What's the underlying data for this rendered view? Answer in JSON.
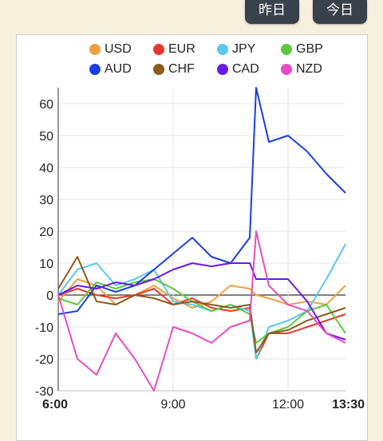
{
  "buttons": {
    "yesterday": "昨日",
    "today": "今日"
  },
  "legend": [
    {
      "name": "USD",
      "color": "#f0a13c"
    },
    {
      "name": "EUR",
      "color": "#e8392c"
    },
    {
      "name": "JPY",
      "color": "#5ac8f0"
    },
    {
      "name": "GBP",
      "color": "#5cc93c"
    },
    {
      "name": "AUD",
      "color": "#1a3ee0"
    },
    {
      "name": "CHF",
      "color": "#8b5a1c"
    },
    {
      "name": "CAD",
      "color": "#6a1ae8"
    },
    {
      "name": "NZD",
      "color": "#e84cc0"
    }
  ],
  "chart_data": {
    "type": "line",
    "ylim": [
      -30,
      65
    ],
    "y_ticks": [
      "60",
      "50",
      "40",
      "30",
      "20",
      "10",
      "0",
      "-10",
      "-20",
      "-30"
    ],
    "x_ticks": [
      {
        "label": "6:00",
        "bold": true
      },
      {
        "label": "9:00",
        "bold": false
      },
      {
        "label": "12:00",
        "bold": false
      },
      {
        "label": "13:30",
        "bold": true
      }
    ],
    "x": [
      "6:00",
      "6:30",
      "7:00",
      "7:30",
      "8:00",
      "8:30",
      "9:00",
      "9:30",
      "10:00",
      "10:30",
      "11:00",
      "11:10",
      "11:30",
      "12:00",
      "12:30",
      "13:00",
      "13:30"
    ],
    "series": [
      {
        "name": "USD",
        "color": "#f0a13c",
        "values": [
          -2,
          5,
          3,
          -3,
          0,
          3,
          -1,
          -4,
          -2,
          3,
          2,
          0,
          -1,
          -3,
          -2,
          -3,
          3
        ]
      },
      {
        "name": "EUR",
        "color": "#e8392c",
        "values": [
          0,
          2,
          0,
          -1,
          0,
          2,
          -3,
          -1,
          -4,
          -5,
          -4,
          -20,
          -12,
          -12,
          -10,
          -8,
          -6
        ]
      },
      {
        "name": "JPY",
        "color": "#5ac8f0",
        "values": [
          0,
          8,
          10,
          3,
          5,
          8,
          -2,
          -3,
          -5,
          -3,
          -5,
          -20,
          -10,
          -8,
          -5,
          5,
          16
        ]
      },
      {
        "name": "GBP",
        "color": "#5cc93c",
        "values": [
          -1,
          -3,
          4,
          2,
          4,
          5,
          2,
          -2,
          -5,
          -3,
          -6,
          -15,
          -12,
          -10,
          -5,
          -3,
          -12
        ]
      },
      {
        "name": "AUD",
        "color": "#1a3ee0",
        "values": [
          -6,
          -5,
          3,
          1,
          3,
          8,
          13,
          18,
          12,
          10,
          18,
          65,
          48,
          50,
          45,
          38,
          32
        ]
      },
      {
        "name": "CHF",
        "color": "#8b5a1c",
        "values": [
          2,
          12,
          -2,
          -3,
          0,
          -1,
          -3,
          -2,
          -3,
          -4,
          -3,
          -18,
          -12,
          -11,
          -8,
          -6,
          -4
        ]
      },
      {
        "name": "CAD",
        "color": "#6a1ae8",
        "values": [
          0,
          3,
          2,
          4,
          3,
          5,
          8,
          10,
          9,
          10,
          10,
          5,
          5,
          5,
          -2,
          -12,
          -14
        ]
      },
      {
        "name": "NZD",
        "color": "#e84cc0",
        "values": [
          0,
          -20,
          -25,
          -12,
          -20,
          -30,
          -10,
          -12,
          -15,
          -10,
          -8,
          20,
          3,
          -3,
          -5,
          -12,
          -15
        ]
      }
    ]
  }
}
